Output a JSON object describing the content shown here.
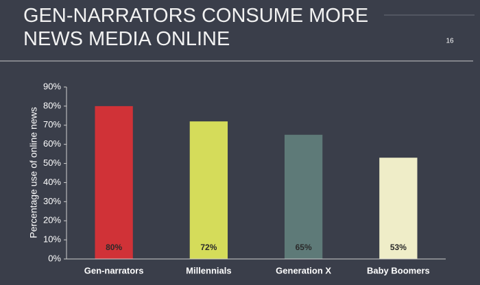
{
  "slide_number": 16,
  "chart_data": {
    "type": "bar",
    "title_lines": [
      "GEN-NARRATORS CONSUME MORE",
      "NEWS MEDIA ONLINE"
    ],
    "y_label": "Percentage use of online news",
    "categories": [
      "Gen-narrators",
      "Millennials",
      "Generation X",
      "Baby Boomers"
    ],
    "values": [
      80,
      72,
      65,
      53
    ],
    "value_labels": [
      "80%",
      "72%",
      "65%",
      "53%"
    ],
    "colors": [
      "#d03237",
      "#d5dc5a",
      "#5e7a78",
      "#efedc8"
    ],
    "ylim": [
      0,
      90
    ],
    "yticks": [
      {
        "value": 0,
        "label": "0%"
      },
      {
        "value": 10,
        "label": "10%"
      },
      {
        "value": 20,
        "label": "20%"
      },
      {
        "value": 30,
        "label": "30%"
      },
      {
        "value": 40,
        "label": "40%"
      },
      {
        "value": 50,
        "label": "50%"
      },
      {
        "value": 60,
        "label": "60%"
      },
      {
        "value": 70,
        "label": "70%"
      },
      {
        "value": 80,
        "label": "80%"
      },
      {
        "value": 90,
        "label": "90%"
      }
    ],
    "grid": false
  }
}
